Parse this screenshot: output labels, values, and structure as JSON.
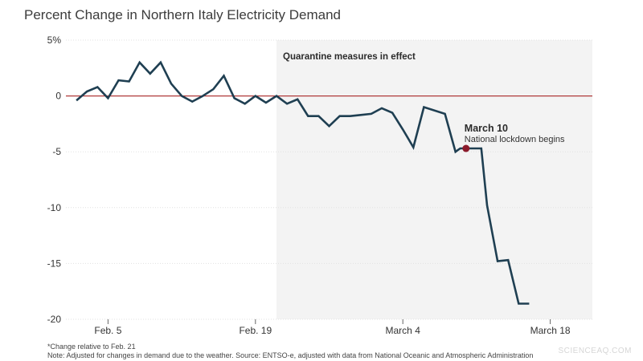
{
  "title": "Percent Change in Northern Italy Electricity Demand",
  "footnote": "*Change relative to Feb. 21",
  "note": "Note: Adjusted for changes in demand due to the weather. Source: ENTSO-e, adjusted with data from National Oceanic and Atmospheric Administration",
  "watermark": "SCIENCEAQ.COM",
  "chart_data": {
    "type": "line",
    "ylim": [
      -20,
      5
    ],
    "yticks": [
      5,
      0,
      -5,
      -10,
      -15,
      -20
    ],
    "ytick_labels": [
      "5%",
      "0",
      "-5",
      "-10",
      "-15",
      "-20"
    ],
    "xlim": [
      "2020-02-01",
      "2020-03-22"
    ],
    "xticks": [
      {
        "date": "2020-02-05",
        "label": "Feb. 5"
      },
      {
        "date": "2020-02-19",
        "label": "Feb. 19"
      },
      {
        "date": "2020-03-04",
        "label": "March 4"
      },
      {
        "date": "2020-03-18",
        "label": "March 18"
      }
    ],
    "grid": true,
    "zero_line_color": "#b03a3a",
    "line_color": "#1f3f52",
    "region": {
      "start": "2020-02-21",
      "end": "2020-03-22",
      "label": "Quarantine measures in effect",
      "color": "#f3f3f3"
    },
    "annotation": {
      "date": "2020-03-10",
      "value": -4.7,
      "title": "March 10",
      "text": "National lockdown begins",
      "color": "#8b1a2b"
    },
    "series": [
      {
        "x": [
          "2020-02-02",
          "2020-02-03",
          "2020-02-04",
          "2020-02-05",
          "2020-02-06",
          "2020-02-07",
          "2020-02-08",
          "2020-02-09",
          "2020-02-10",
          "2020-02-11",
          "2020-02-12",
          "2020-02-13",
          "2020-02-14",
          "2020-02-15",
          "2020-02-16",
          "2020-02-17",
          "2020-02-18",
          "2020-02-19",
          "2020-02-20",
          "2020-02-21",
          "2020-02-22",
          "2020-02-23",
          "2020-02-24",
          "2020-02-25",
          "2020-02-26",
          "2020-02-27",
          "2020-02-28",
          "2020-02-29",
          "2020-03-01",
          "2020-03-02",
          "2020-03-03",
          "2020-03-04",
          "2020-03-05",
          "2020-03-06",
          "2020-03-08",
          "2020-03-09",
          "2020-03-09",
          "2020-03-10",
          "2020-03-10",
          "2020-03-11",
          "2020-03-11",
          "2020-03-12",
          "2020-03-13",
          "2020-03-14",
          "2020-03-15",
          "2020-03-16"
        ],
        "values": [
          -0.4,
          0.4,
          0.8,
          -0.2,
          1.4,
          1.3,
          3.0,
          2.0,
          3.0,
          1.1,
          0,
          -0.5,
          0,
          0.6,
          1.8,
          -0.2,
          -0.7,
          0,
          -0.6,
          0,
          -0.7,
          -0.3,
          -1.8,
          -1.8,
          -2.7,
          -1.8,
          -1.8,
          -1.7,
          -1.6,
          -1.1,
          -1.5,
          -3.0,
          -4.6,
          -1.0,
          -1.6,
          -5.0,
          -4.7,
          -4.7,
          -4.7,
          -4.7,
          -4.7,
          -9.8,
          -14.8,
          -14.7,
          -18.6,
          -18.6
        ]
      }
    ]
  }
}
